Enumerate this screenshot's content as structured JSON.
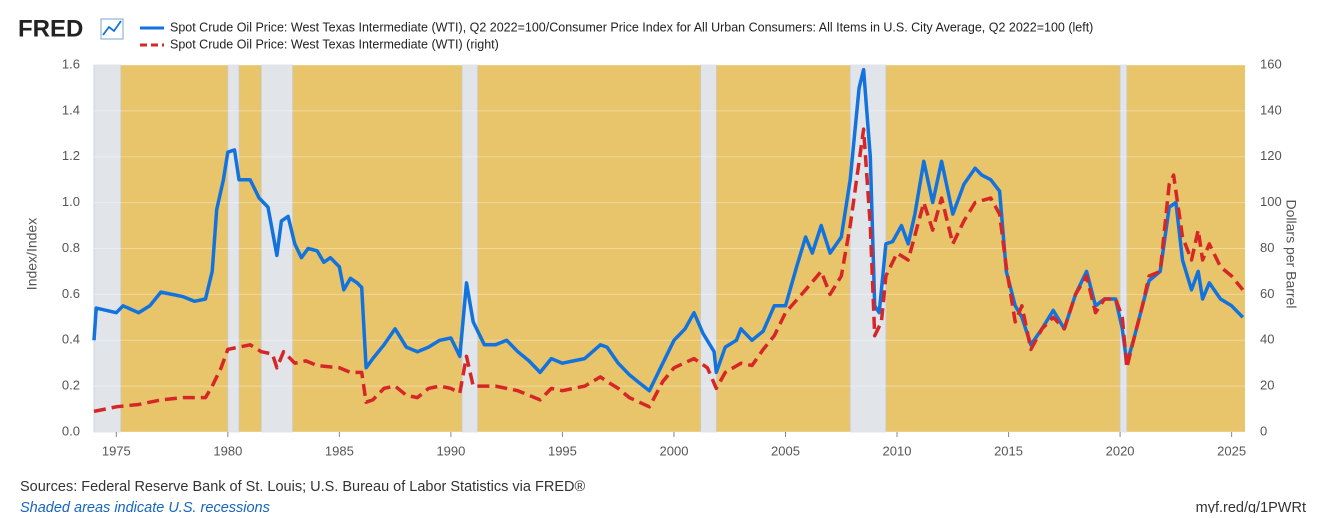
{
  "chart_data": {
    "type": "line",
    "logo": "FRED",
    "ylabel": "Index/Index",
    "y2label": "Dollars per Barrel",
    "source": "Sources: Federal Reserve Bank of St. Louis; U.S. Bureau of Labor Statistics via FRED®",
    "note": "Shaded areas indicate U.S. recessions",
    "url": "myf.red/g/1PWRt",
    "background_color": "#e8c46a",
    "recession_color": "#e1e5ea",
    "grid": true,
    "xlim": [
      1974,
      2025.6
    ],
    "xticks": [
      1975,
      1980,
      1985,
      1990,
      1995,
      2000,
      2005,
      2010,
      2015,
      2020,
      2025
    ],
    "ylim": [
      0,
      1.6
    ],
    "yticks": [
      {
        "value": 0,
        "label": "0.0"
      },
      0.2,
      0.4,
      0.6,
      0.8,
      {
        "value": 1,
        "label": "1.0"
      },
      1.2,
      1.4,
      1.6
    ],
    "y2lim": [
      0,
      160
    ],
    "y2ticks": [
      0,
      20,
      40,
      60,
      80,
      100,
      120,
      140,
      160
    ],
    "recessions": [
      [
        1974,
        1975.2
      ],
      [
        1980,
        1980.5
      ],
      [
        1981.5,
        1982.9
      ],
      [
        1990.5,
        1991.2
      ],
      [
        2001.2,
        2001.9
      ],
      [
        2007.9,
        2009.5
      ],
      [
        2020,
        2020.3
      ]
    ],
    "series": [
      {
        "name": "Spot Crude Oil Price: West Texas Intermediate (WTI), Q2 2022=100/Consumer Price Index for All Urban Consumers: All Items in U.S. City Average, Q2 2022=100 (left)",
        "color": "#1273de",
        "axis": "y",
        "x": [
          1974,
          1974.1,
          1975,
          1975.3,
          1976,
          1976.5,
          1977,
          1977.5,
          1978,
          1978.5,
          1979,
          1979.3,
          1979.5,
          1979.8,
          1980,
          1980.3,
          1980.5,
          1981,
          1981.4,
          1981.8,
          1982.2,
          1982.4,
          1982.7,
          1983,
          1983.3,
          1983.6,
          1984,
          1984.3,
          1984.6,
          1985,
          1985.2,
          1985.5,
          1985.8,
          1986,
          1986.2,
          1986.5,
          1987,
          1987.5,
          1988,
          1988.5,
          1989,
          1989.5,
          1990,
          1990.4,
          1990.7,
          1991,
          1991.5,
          1992,
          1992.5,
          1993,
          1993.5,
          1994,
          1994.5,
          1995,
          1995.5,
          1996,
          1996.7,
          1997,
          1997.5,
          1998,
          1998.5,
          1998.9,
          1999.5,
          2000,
          2000.5,
          2000.9,
          2001.3,
          2001.8,
          2001.9,
          2002.3,
          2002.8,
          2003,
          2003.5,
          2004,
          2004.5,
          2005,
          2005.5,
          2005.9,
          2006.2,
          2006.6,
          2007,
          2007.5,
          2007.9,
          2008.3,
          2008.5,
          2008.8,
          2009,
          2009.2,
          2009.5,
          2009.8,
          2010.2,
          2010.5,
          2010.8,
          2011.2,
          2011.6,
          2012,
          2012.5,
          2013,
          2013.5,
          2013.8,
          2014.2,
          2014.6,
          2014.9,
          2015.3,
          2015.6,
          2016,
          2016.5,
          2017,
          2017.5,
          2018,
          2018.5,
          2018.9,
          2019.3,
          2019.8,
          2020.1,
          2020.3,
          2020.6,
          2021,
          2021.3,
          2021.8,
          2022.2,
          2022.5,
          2022.8,
          2023.2,
          2023.5,
          2023.7,
          2024,
          2024.5,
          2025,
          2025.5
        ],
        "values": [
          0.4,
          0.54,
          0.52,
          0.55,
          0.52,
          0.55,
          0.61,
          0.6,
          0.59,
          0.57,
          0.58,
          0.7,
          0.97,
          1.1,
          1.22,
          1.23,
          1.1,
          1.1,
          1.02,
          0.98,
          0.77,
          0.92,
          0.94,
          0.82,
          0.76,
          0.8,
          0.79,
          0.74,
          0.76,
          0.72,
          0.62,
          0.67,
          0.65,
          0.63,
          0.28,
          0.32,
          0.38,
          0.45,
          0.37,
          0.35,
          0.37,
          0.4,
          0.41,
          0.33,
          0.65,
          0.48,
          0.38,
          0.38,
          0.4,
          0.35,
          0.31,
          0.26,
          0.32,
          0.3,
          0.31,
          0.32,
          0.38,
          0.37,
          0.3,
          0.25,
          0.21,
          0.18,
          0.3,
          0.4,
          0.45,
          0.52,
          0.43,
          0.35,
          0.26,
          0.37,
          0.4,
          0.45,
          0.4,
          0.44,
          0.55,
          0.55,
          0.72,
          0.85,
          0.78,
          0.9,
          0.78,
          0.85,
          1.1,
          1.5,
          1.58,
          1.2,
          0.55,
          0.52,
          0.82,
          0.83,
          0.9,
          0.82,
          0.95,
          1.18,
          1.0,
          1.18,
          0.95,
          1.08,
          1.15,
          1.12,
          1.1,
          1.05,
          0.7,
          0.55,
          0.5,
          0.38,
          0.45,
          0.53,
          0.45,
          0.6,
          0.7,
          0.55,
          0.58,
          0.58,
          0.45,
          0.3,
          0.4,
          0.55,
          0.66,
          0.7,
          0.98,
          1.0,
          0.75,
          0.62,
          0.7,
          0.58,
          0.65,
          0.58,
          0.55,
          0.5
        ]
      },
      {
        "name": "Spot Crude Oil Price: West Texas Intermediate (WTI) (right)",
        "color": "#d62728",
        "axis": "y2",
        "dashed": true,
        "x": [
          1974,
          1975,
          1976,
          1977,
          1978,
          1979,
          1979.3,
          1979.7,
          1980,
          1980.5,
          1981,
          1981.5,
          1982,
          1982.2,
          1982.5,
          1983,
          1983.5,
          1984,
          1985,
          1985.5,
          1986,
          1986.2,
          1986.5,
          1987,
          1987.5,
          1988,
          1988.5,
          1989,
          1989.5,
          1990,
          1990.4,
          1990.7,
          1991,
          1991.5,
          1992,
          1993,
          1993.5,
          1994,
          1994.5,
          1995,
          1996,
          1996.7,
          1997,
          1997.5,
          1998,
          1998.9,
          1999.5,
          2000,
          2000.9,
          2001.5,
          2001.9,
          2002.3,
          2003,
          2003.5,
          2004,
          2004.5,
          2005,
          2005.9,
          2006.6,
          2007,
          2007.5,
          2007.9,
          2008.5,
          2008.8,
          2009,
          2009.3,
          2009.5,
          2010,
          2010.5,
          2011.2,
          2011.6,
          2012,
          2012.5,
          2013,
          2013.5,
          2014.2,
          2014.6,
          2014.9,
          2015.3,
          2015.6,
          2016,
          2016.5,
          2017,
          2017.5,
          2018,
          2018.5,
          2018.9,
          2019.3,
          2019.8,
          2020.1,
          2020.3,
          2020.6,
          2021,
          2021.3,
          2021.8,
          2022.2,
          2022.4,
          2022.8,
          2023.2,
          2023.5,
          2023.7,
          2024,
          2024.5,
          2025,
          2025.5
        ],
        "values": [
          9,
          11,
          12,
          14,
          15,
          15,
          20,
          28,
          36,
          37,
          38,
          35,
          34,
          28,
          35,
          30,
          31,
          29,
          28,
          26,
          26,
          13,
          14,
          19,
          20,
          16,
          15,
          19,
          20,
          19,
          17,
          33,
          20,
          20,
          20,
          18,
          16,
          14,
          19,
          18,
          20,
          24,
          22,
          19,
          15,
          11,
          22,
          28,
          32,
          28,
          19,
          26,
          30,
          29,
          36,
          42,
          52,
          62,
          70,
          60,
          68,
          90,
          132,
          90,
          42,
          48,
          68,
          78,
          75,
          100,
          88,
          102,
          82,
          92,
          100,
          102,
          95,
          72,
          48,
          55,
          36,
          45,
          50,
          45,
          60,
          68,
          52,
          58,
          58,
          50,
          28,
          40,
          55,
          68,
          70,
          108,
          112,
          85,
          75,
          88,
          75,
          82,
          72,
          68,
          62
        ]
      }
    ]
  }
}
